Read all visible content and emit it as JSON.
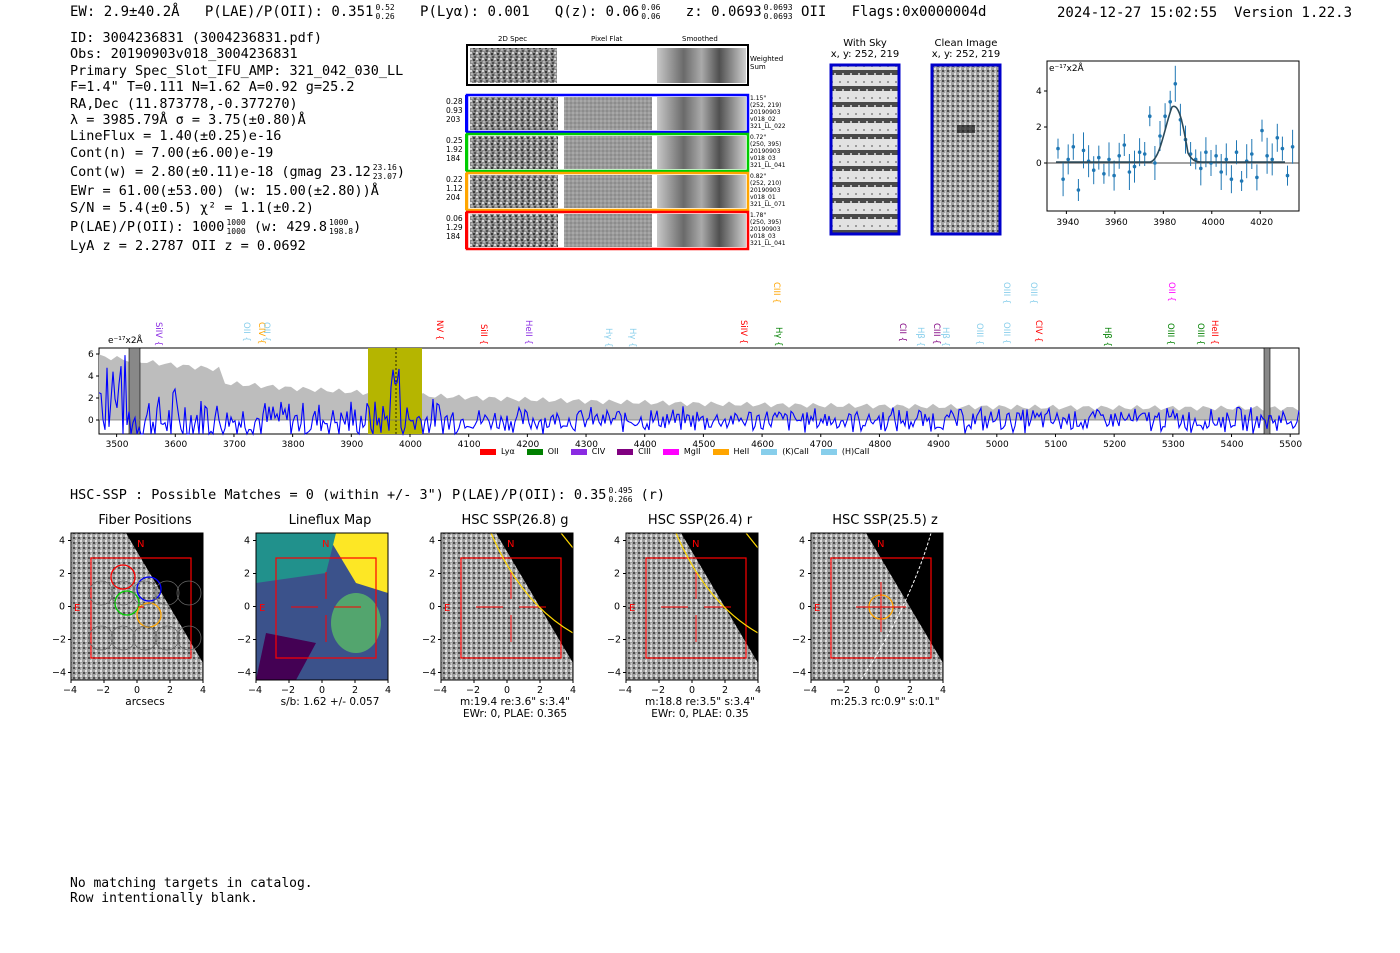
{
  "header": {
    "ew": "EW: 2.9±40.2Å",
    "plae_label": "P(LAE)/P(OII):",
    "plae_value": "0.351",
    "plae_hi": "0.52",
    "plae_lo": "0.26",
    "plya": "P(Lyα): 0.001",
    "qz_label": "Q(z):",
    "qz_value": "0.06",
    "qz_hi": "0.06",
    "qz_lo": "0.06",
    "z_label": "z:",
    "z_value": "0.0693",
    "z_hi": "0.0693",
    "z_lo": "0.0693",
    "z_line": "OII",
    "flags": "Flags:0x0000004d",
    "datetime": "2024-12-27 15:02:55",
    "version": "Version 1.22.3"
  },
  "info": {
    "id": "ID: 3004236831 (3004236831.pdf)",
    "obs": "Obs: 20190903v018_3004236831",
    "primary": "Primary Spec_Slot_IFU_AMP: 321_042_030_LL",
    "params": "F=1.4\"  T=0.111  N=1.62  A=0.92  g=25.2",
    "radec": "RA,Dec (11.873778,-0.377270)",
    "lambda": "λ = 3985.79Å   σ = 3.75(±0.80)Å",
    "lineflux": "LineFlux = 1.40(±0.25)e-16",
    "contn": "Cont(n) = 7.00(±6.00)e-19",
    "contw": "Cont(w) = 2.80(±0.11)e-18 (gmag 23.12",
    "contw_hi": "23.16",
    "contw_lo": "23.07",
    "contw_end": ")",
    "ewr": "EWr = 61.00(±53.00) (w: 15.00(±2.80))Å",
    "sn": "S/N = 5.4(±0.5)  χ² = 1.1(±0.2)",
    "plae_line": "P(LAE)/P(OII): 1000",
    "plae_line_hi": "1000",
    "plae_line_lo": "1000",
    "plae_line_w": "(w: 429.8",
    "plae_line_w_hi": "1000",
    "plae_line_w_lo": "198.8",
    "plae_line_end": ")",
    "lyaz": "LyA z = 2.2787   OII z = 0.0692"
  },
  "cutouts": {
    "col_2d": "2D Spec",
    "col_flat": "Pixel Flat",
    "col_smooth": "Smoothed",
    "weighted_sum": "Weighted Sum",
    "rows": [
      {
        "vals": [
          "0.28",
          "0.93",
          "203"
        ],
        "desc": [
          "1.15\"",
          "(252, 219)",
          "20190903",
          "v018_02",
          "321_LL_022"
        ],
        "color": "#0000ff"
      },
      {
        "vals": [
          "0.25",
          "1.92",
          "184"
        ],
        "desc": [
          "0.72\"",
          "(250, 395)",
          "20190903",
          "v018_03",
          "321_LL_041"
        ],
        "color": "#00cc00"
      },
      {
        "vals": [
          "0.22",
          "1.12",
          "204"
        ],
        "desc": [
          "0.82\"",
          "(252, 210)",
          "20190903",
          "v018_01",
          "321_LL_071"
        ],
        "color": "#ffa500"
      },
      {
        "vals": [
          "0.06",
          "1.29",
          "184"
        ],
        "desc": [
          "1.78\"",
          "(250, 395)",
          "20190903",
          "v018_03",
          "321_LL_041"
        ],
        "color": "#ff0000"
      }
    ]
  },
  "sky": {
    "with_sky": "With Sky",
    "clean": "Clean Image",
    "coords1": "x, y: 252, 219",
    "coords2": "x, y: 252, 219"
  },
  "zoom_plot": {
    "unit": "e⁻¹⁷x2Å",
    "xticks": [
      "3940",
      "3960",
      "3980",
      "4000",
      "4020"
    ],
    "yticks": [
      "4",
      "2",
      "0"
    ]
  },
  "full_spectrum": {
    "unit": "e⁻¹⁷x2Å",
    "xticks": [
      "3500",
      "3600",
      "3700",
      "3800",
      "3900",
      "4000",
      "4100",
      "4200",
      "4300",
      "4400",
      "4500",
      "4600",
      "4700",
      "4800",
      "4900",
      "5000",
      "5100",
      "5200",
      "5300",
      "5400",
      "5500"
    ],
    "yticks": [
      "6",
      "4",
      "2",
      "0"
    ],
    "line_labels": [
      {
        "t": "SiIV",
        "c": "#8a2be2"
      },
      {
        "t": "OII",
        "c": "#87ceeb"
      },
      {
        "t": "CIV",
        "c": "#ffa500"
      },
      {
        "t": "OII",
        "c": "#87ceeb"
      },
      {
        "t": "NV",
        "c": "#ff0000"
      },
      {
        "t": "SiII",
        "c": "#ff0000"
      },
      {
        "t": "HeII",
        "c": "#8a2be2"
      },
      {
        "t": "Hγ",
        "c": "#87ceeb"
      },
      {
        "t": "Hγ",
        "c": "#87ceeb"
      },
      {
        "t": "SiIV",
        "c": "#ff0000"
      },
      {
        "t": "CIII",
        "c": "#ffa500"
      },
      {
        "t": "Hγ",
        "c": "#008000"
      },
      {
        "t": "CII",
        "c": "#800080"
      },
      {
        "t": "Hβ",
        "c": "#87ceeb"
      },
      {
        "t": "CIII",
        "c": "#800080"
      },
      {
        "t": "Hβ",
        "c": "#87ceeb"
      },
      {
        "t": "OIII",
        "c": "#87ceeb"
      },
      {
        "t": "OIII",
        "c": "#87ceeb"
      },
      {
        "t": "OIII",
        "c": "#87ceeb"
      },
      {
        "t": "OIII",
        "c": "#87ceeb"
      },
      {
        "t": "CIV",
        "c": "#ff0000"
      },
      {
        "t": "Hβ",
        "c": "#008000"
      },
      {
        "t": "OII",
        "c": "#ff00ff"
      },
      {
        "t": "OIII",
        "c": "#008000"
      },
      {
        "t": "OIII",
        "c": "#008000"
      },
      {
        "t": "HeII",
        "c": "#ff0000"
      }
    ],
    "legend": [
      {
        "t": "Lyα",
        "c": "#ff0000"
      },
      {
        "t": "OII",
        "c": "#008000"
      },
      {
        "t": "CIV",
        "c": "#8a2be2"
      },
      {
        "t": "CIII",
        "c": "#800080"
      },
      {
        "t": "MgII",
        "c": "#ff00ff"
      },
      {
        "t": "HeII",
        "c": "#ffa500"
      },
      {
        "t": "(K)CaII",
        "c": "#87ceeb"
      },
      {
        "t": "(H)CaII",
        "c": "#87ceeb"
      }
    ]
  },
  "hsc": {
    "summary": "HSC-SSP : Possible Matches = 0 (within +/- 3\")  P(LAE)/P(OII): 0.35",
    "summary_hi": "0.495",
    "summary_lo": "0.266",
    "summary_end": "(r)"
  },
  "panels": [
    {
      "title": "Fiber Positions",
      "caption": [
        "arcsecs"
      ]
    },
    {
      "title": "Lineflux Map",
      "caption": [
        "s/b: 1.62 +/- 0.057"
      ]
    },
    {
      "title": "HSC SSP(26.8) g",
      "caption": [
        "m:19.4  re:3.6\"  s:3.4\"",
        "EWr: 0, PLAE: 0.365"
      ]
    },
    {
      "title": "HSC SSP(26.4) r",
      "caption": [
        "m:18.8  re:3.5\"  s:3.4\"",
        "EWr: 0, PLAE: 0.35"
      ]
    },
    {
      "title": "HSC SSP(25.5) z",
      "caption": [
        "m:25.3 rc:0.9\"  s:0.1\""
      ]
    }
  ],
  "panel_common": {
    "north": "N",
    "east": "E",
    "xticks": [
      "−4",
      "−2",
      "0",
      "2",
      "4"
    ],
    "yticks": [
      "4",
      "2",
      "0",
      "−2",
      "−4"
    ]
  },
  "footer": {
    "line1": "No matching targets in catalog.",
    "line2": "Row intentionally blank."
  }
}
